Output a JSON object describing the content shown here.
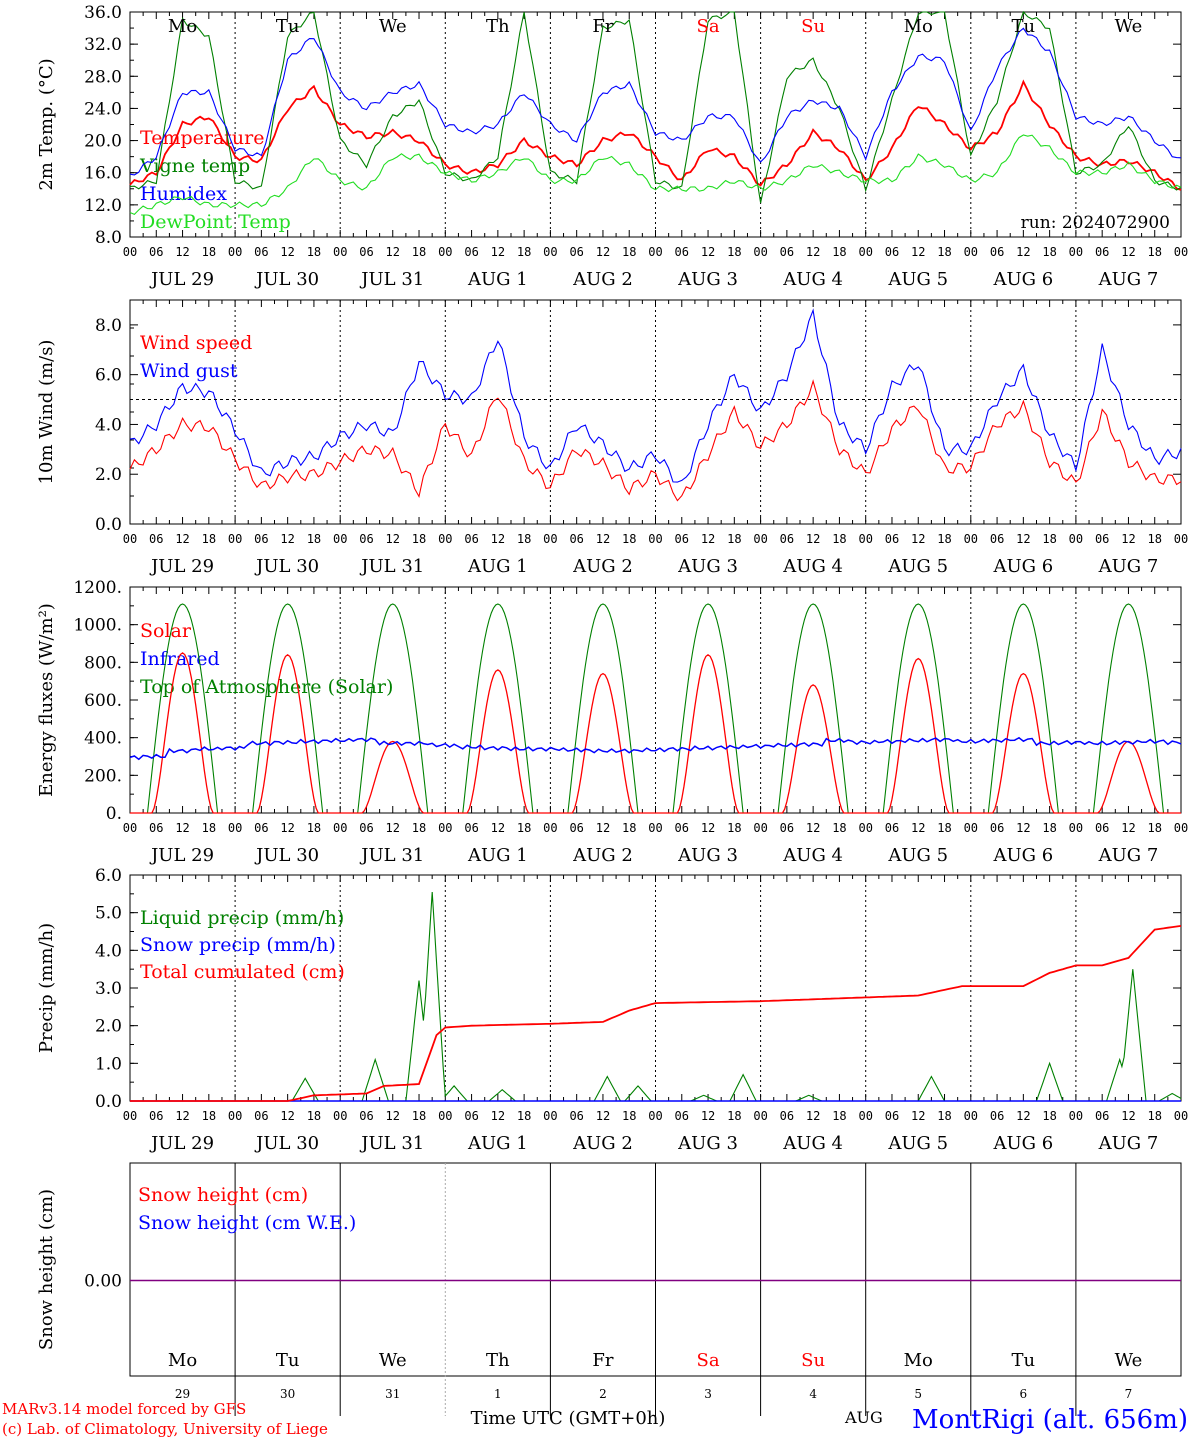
{
  "colors": {
    "red": "#ff0000",
    "green": "#008000",
    "blue": "#0000ff",
    "lime": "#22dd22",
    "purple": "#800080",
    "black": "#000000"
  },
  "days": {
    "weekdays": [
      "Mo",
      "Tu",
      "We",
      "Th",
      "Fr",
      "Sa",
      "Su",
      "Mo",
      "Tu",
      "We"
    ],
    "weekday_colors": [
      "#000",
      "#000",
      "#000",
      "#000",
      "#000",
      "#ff0000",
      "#ff0000",
      "#000",
      "#000",
      "#000"
    ],
    "date_labels": [
      "JUL 29",
      "JUL 30",
      "JUL 31",
      "AUG  1",
      "AUG  2",
      "AUG  3",
      "AUG  4",
      "AUG  5",
      "AUG  6",
      "AUG  7"
    ],
    "hour_ticks": [
      "00",
      "06",
      "12",
      "18"
    ],
    "final_tick": "00",
    "day_numbers": [
      "29",
      "30",
      "31",
      "1",
      "2",
      "3",
      "4",
      "5",
      "6",
      "7"
    ]
  },
  "chart_data": [
    {
      "type": "line",
      "ylabel": "2m Temp. (°C)",
      "ylim": [
        8,
        36
      ],
      "yticks": [
        "36.0",
        "32.0",
        "28.0",
        "24.0",
        "20.0",
        "16.0",
        "12.0",
        "8.0"
      ],
      "annotation": "run: 2024072900",
      "x_hours": [
        0,
        6,
        12,
        18,
        24,
        30,
        36,
        42,
        48,
        54,
        60,
        66,
        72,
        78,
        84,
        90,
        96,
        102,
        108,
        114,
        120,
        126,
        132,
        138,
        144,
        150,
        156,
        162,
        168,
        174,
        180,
        186,
        192,
        198,
        204,
        210,
        216,
        222,
        228,
        234,
        240
      ],
      "series": [
        {
          "name": "Temperature",
          "color": "#ff0000",
          "values": [
            14.5,
            16,
            22,
            23,
            18,
            17.5,
            24,
            26.5,
            22,
            20.5,
            21,
            20,
            17,
            16,
            17,
            20,
            18,
            17,
            20,
            21,
            18,
            15,
            19,
            18,
            14.5,
            17,
            21,
            19,
            15,
            19,
            24.5,
            22,
            19,
            21,
            27,
            22,
            18,
            17,
            17.5,
            16,
            14
          ]
        },
        {
          "name": "Vigne temp",
          "color": "#008000",
          "values": [
            14,
            15,
            35,
            33,
            15,
            14,
            33,
            36,
            20,
            17,
            23,
            25,
            16,
            15,
            18,
            36,
            16,
            15,
            34,
            35,
            15,
            14,
            35,
            36,
            12,
            28,
            30,
            24,
            14,
            25,
            36,
            36,
            18,
            25,
            36,
            34,
            16,
            17,
            22,
            15,
            14
          ]
        },
        {
          "name": "Humidex",
          "color": "#0000ff",
          "values": [
            15.5,
            18,
            26,
            26,
            19,
            18,
            30,
            33,
            26,
            24,
            26,
            27,
            22,
            21,
            22,
            26,
            22,
            20,
            26,
            27,
            21,
            20,
            23,
            23,
            17,
            23,
            25,
            24,
            18,
            26,
            30.5,
            30,
            21,
            29,
            34,
            31,
            23,
            22,
            23,
            20,
            17.5
          ]
        },
        {
          "name": "DewPoint Temp",
          "color": "#22dd22",
          "values": [
            11,
            12,
            13,
            12,
            12,
            12,
            14,
            18,
            15,
            14,
            18,
            18,
            16,
            15,
            16,
            18,
            15,
            15,
            18,
            17,
            14,
            14,
            14,
            15,
            14,
            15,
            17,
            16,
            15,
            15,
            18,
            17,
            15,
            16,
            21,
            19,
            16,
            16,
            17,
            15,
            14
          ]
        }
      ]
    },
    {
      "type": "line",
      "ylabel": "10m Wind (m/s)",
      "ylim": [
        0,
        9
      ],
      "yticks": [
        "8.0",
        "6.0",
        "4.0",
        "2.0",
        "0.0"
      ],
      "reference_line": 5.0,
      "x_hours": [
        0,
        6,
        12,
        18,
        24,
        30,
        36,
        42,
        48,
        54,
        60,
        66,
        72,
        78,
        84,
        90,
        96,
        102,
        108,
        114,
        120,
        126,
        132,
        138,
        144,
        150,
        156,
        162,
        168,
        174,
        180,
        186,
        192,
        198,
        204,
        210,
        216,
        222,
        228,
        234,
        240
      ],
      "series": [
        {
          "name": "Wind speed",
          "color": "#ff0000",
          "values": [
            2.2,
            3.0,
            4.0,
            3.9,
            2.6,
            1.5,
            1.9,
            2.0,
            2.5,
            3.0,
            2.8,
            1.3,
            4.0,
            2.7,
            5.3,
            2.5,
            1.5,
            3.0,
            2.4,
            1.4,
            2.0,
            1.0,
            2.8,
            4.5,
            3.1,
            4.0,
            5.5,
            3.0,
            2.0,
            3.8,
            4.8,
            2.2,
            2.3,
            4.0,
            4.7,
            2.5,
            1.6,
            4.5,
            2.5,
            1.8,
            1.8
          ]
        },
        {
          "name": "Wind gust",
          "color": "#0000ff",
          "values": [
            3.2,
            4.0,
            5.5,
            5.3,
            3.8,
            2.0,
            2.5,
            2.7,
            3.5,
            4.0,
            3.6,
            6.5,
            5.2,
            5.0,
            7.5,
            3.5,
            2.2,
            4.0,
            3.2,
            2.2,
            2.8,
            1.5,
            4.0,
            6.0,
            4.5,
            6.0,
            8.4,
            4.0,
            3.0,
            5.5,
            6.5,
            3.0,
            3.0,
            5.0,
            6.2,
            3.6,
            2.3,
            7.0,
            4.0,
            2.6,
            2.9
          ]
        }
      ]
    },
    {
      "type": "line",
      "ylabel": "Energy fluxes (W/m²)",
      "ylim": [
        0,
        1200
      ],
      "yticks": [
        "1200.",
        "1000.",
        "800.",
        "600.",
        "400.",
        "200.",
        "0."
      ],
      "series": [
        {
          "name": "Solar",
          "color": "#ff0000",
          "daily_peaks": [
            850,
            840,
            380,
            760,
            740,
            840,
            680,
            820,
            740,
            380
          ]
        },
        {
          "name": "Infrared",
          "color": "#0000ff",
          "values": [
            295,
            300,
            330,
            340,
            345,
            370,
            375,
            380,
            385,
            390,
            370,
            370,
            360,
            350,
            345,
            340,
            340,
            335,
            330,
            330,
            335,
            340,
            345,
            350,
            355,
            360,
            365,
            385,
            375,
            380,
            385,
            390,
            380,
            385,
            390,
            370,
            375,
            370,
            375,
            380,
            375
          ]
        },
        {
          "name": "Top of Atmosphere (Solar)",
          "color": "#008000",
          "daily_peak": 1110,
          "sunrise_utc": 4,
          "sunset_utc": 20
        }
      ]
    },
    {
      "type": "line",
      "ylabel": "Precip (mm/h)",
      "ylim": [
        0,
        6
      ],
      "yticks": [
        "6.0",
        "5.0",
        "4.0",
        "3.0",
        "2.0",
        "1.0",
        "0.0"
      ],
      "series": [
        {
          "name": "Liquid precip (mm/h)",
          "color": "#008000",
          "peaks": [
            {
              "h": 40,
              "v": 0.6
            },
            {
              "h": 56,
              "v": 1.1
            },
            {
              "h": 66,
              "v": 3.2
            },
            {
              "h": 69,
              "v": 5.55
            },
            {
              "h": 74,
              "v": 0.4
            },
            {
              "h": 85,
              "v": 0.3
            },
            {
              "h": 109,
              "v": 0.65
            },
            {
              "h": 116,
              "v": 0.4
            },
            {
              "h": 131,
              "v": 0.15
            },
            {
              "h": 140,
              "v": 0.7
            },
            {
              "h": 155,
              "v": 0.15
            },
            {
              "h": 183,
              "v": 0.65
            },
            {
              "h": 210,
              "v": 1.0
            },
            {
              "h": 226,
              "v": 1.1
            },
            {
              "h": 229,
              "v": 3.5
            },
            {
              "h": 238,
              "v": 0.2
            }
          ]
        },
        {
          "name": "Snow precip (mm/h)",
          "color": "#0000ff",
          "values": [
            0
          ]
        },
        {
          "name": "Total cumulated (cm)",
          "color": "#ff0000",
          "x_hours": [
            0,
            36,
            42,
            54,
            58,
            66,
            70,
            72,
            78,
            96,
            108,
            114,
            120,
            144,
            168,
            180,
            190,
            204,
            210,
            216,
            222,
            228,
            234,
            240
          ],
          "values": [
            0,
            0,
            0.15,
            0.2,
            0.4,
            0.45,
            1.75,
            1.95,
            2.0,
            2.05,
            2.1,
            2.4,
            2.6,
            2.65,
            2.75,
            2.8,
            3.05,
            3.05,
            3.4,
            3.6,
            3.6,
            3.8,
            4.55,
            4.65
          ]
        }
      ]
    },
    {
      "type": "line",
      "ylabel": "Snow height (cm)",
      "yticks": [
        "0.00"
      ],
      "series": [
        {
          "name": "Snow height (cm)",
          "color": "#ff0000",
          "values": [
            0
          ]
        },
        {
          "name": "Snow height (cm W.E.)",
          "color": "#0000ff",
          "values": [
            0
          ]
        }
      ]
    }
  ],
  "footer": {
    "xlabel": "Time UTC (GMT+0h)",
    "month_label": "AUG",
    "credit_line1": "MARv3.14 model forced by GFS",
    "credit_line2": "(c) Lab. of Climatology, University of Liege",
    "station": "MontRigi (alt. 656m)"
  }
}
